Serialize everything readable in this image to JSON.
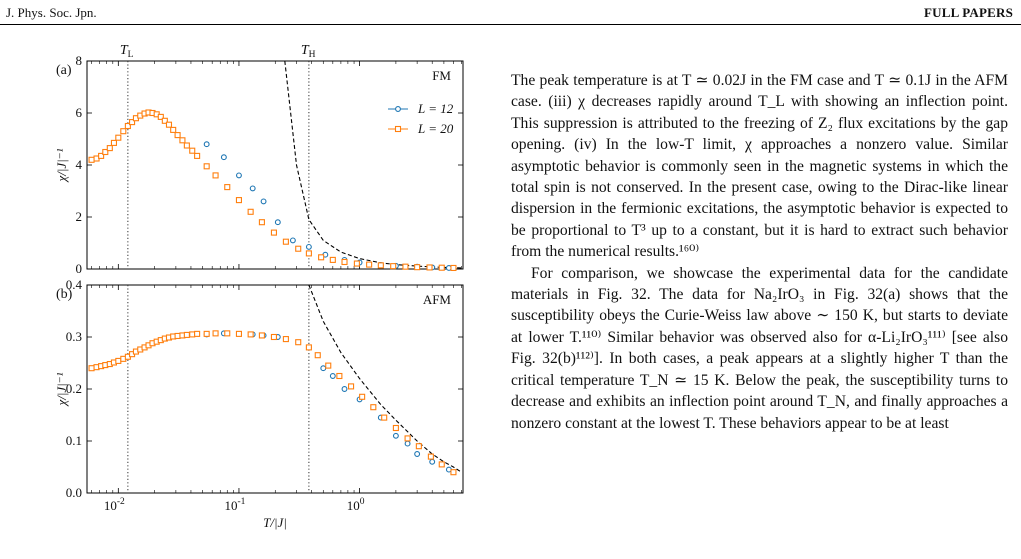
{
  "header": {
    "journal": "J. Phys. Soc. Jpn.",
    "section": "FULL PAPERS"
  },
  "figure": {
    "panel_labels": [
      "(a)",
      "(b)"
    ],
    "vline_labels": [
      "T_L",
      "T_H"
    ],
    "xlabel": "T/|J|",
    "ylabel": "χ/|J|⁻¹",
    "x_tick_labels": [
      "10^-2",
      "10^-1",
      "10^0"
    ]
  },
  "chart_data": [
    {
      "type": "scatter",
      "panel": "(a)",
      "annotation": "FM",
      "xscale": "log",
      "xlim": [
        0.0055,
        7.2
      ],
      "ylim": [
        0,
        8
      ],
      "yticks": [
        0,
        2,
        4,
        6,
        8
      ],
      "xticks": [
        0.01,
        0.1,
        1
      ],
      "vlines": [
        {
          "label": "T_L",
          "x": 0.012
        },
        {
          "label": "T_H",
          "x": 0.38
        }
      ],
      "legend_position": "right",
      "series": [
        {
          "name": "L = 12",
          "marker": "circle",
          "color": "#1f77b4",
          "x": [
            0.019,
            0.054,
            0.075,
            0.1,
            0.13,
            0.16,
            0.21,
            0.28,
            0.38,
            0.52,
            0.75,
            1.0,
            1.5,
            2.0,
            3.0,
            4.0,
            5.5
          ],
          "y": [
            6.0,
            4.8,
            4.3,
            3.6,
            3.1,
            2.6,
            1.8,
            1.1,
            0.85,
            0.55,
            0.35,
            0.25,
            0.15,
            0.12,
            0.09,
            0.06,
            0.04
          ]
        },
        {
          "name": "L = 20",
          "marker": "square",
          "color": "#ff7f0e",
          "x": [
            0.006,
            0.0066,
            0.0072,
            0.0078,
            0.0085,
            0.0092,
            0.01,
            0.011,
            0.012,
            0.013,
            0.014,
            0.0152,
            0.0165,
            0.0178,
            0.0192,
            0.0208,
            0.0225,
            0.0243,
            0.0263,
            0.0285,
            0.031,
            0.034,
            0.037,
            0.041,
            0.045,
            0.054,
            0.064,
            0.08,
            0.1,
            0.125,
            0.155,
            0.195,
            0.245,
            0.31,
            0.38,
            0.48,
            0.6,
            0.75,
            0.95,
            1.2,
            1.5,
            1.9,
            2.4,
            3.0,
            3.8,
            4.8,
            6.0
          ],
          "y": [
            4.2,
            4.25,
            4.35,
            4.5,
            4.65,
            4.85,
            5.05,
            5.3,
            5.5,
            5.65,
            5.8,
            5.9,
            5.98,
            6.02,
            6.0,
            5.95,
            5.85,
            5.7,
            5.55,
            5.35,
            5.15,
            4.95,
            4.75,
            4.55,
            4.35,
            3.95,
            3.6,
            3.15,
            2.65,
            2.2,
            1.8,
            1.4,
            1.05,
            0.78,
            0.6,
            0.45,
            0.35,
            0.27,
            0.21,
            0.17,
            0.14,
            0.11,
            0.09,
            0.07,
            0.06,
            0.05,
            0.04
          ]
        }
      ],
      "curie_weiss_dashed": {
        "x": [
          0.24,
          0.3,
          0.38,
          0.5,
          0.7,
          1.0,
          1.5,
          2.0,
          3.0,
          4.0,
          5.0,
          6.0,
          7.0
        ],
        "y": [
          8.0,
          4.0,
          1.9,
          1.1,
          0.65,
          0.4,
          0.24,
          0.17,
          0.11,
          0.08,
          0.06,
          0.05,
          0.04
        ]
      }
    },
    {
      "type": "scatter",
      "panel": "(b)",
      "annotation": "AFM",
      "xscale": "log",
      "xlim": [
        0.0055,
        7.2
      ],
      "ylim": [
        0,
        0.4
      ],
      "yticks": [
        0.0,
        0.1,
        0.2,
        0.3,
        0.4
      ],
      "xticks": [
        0.01,
        0.1,
        1
      ],
      "vlines": [
        {
          "label": "T_L",
          "x": 0.012
        },
        {
          "label": "T_H",
          "x": 0.38
        }
      ],
      "series": [
        {
          "name": "L = 12",
          "marker": "circle",
          "color": "#1f77b4",
          "x": [
            0.054,
            0.075,
            0.13,
            0.16,
            0.21,
            0.38,
            0.5,
            0.6,
            0.75,
            1.0,
            1.5,
            2.0,
            2.5,
            3.0,
            4.0,
            5.5
          ],
          "y": [
            0.305,
            0.307,
            0.305,
            0.303,
            0.3,
            0.28,
            0.24,
            0.225,
            0.2,
            0.18,
            0.145,
            0.11,
            0.095,
            0.075,
            0.06,
            0.045
          ]
        },
        {
          "name": "L = 20",
          "marker": "square",
          "color": "#ff7f0e",
          "x": [
            0.006,
            0.0066,
            0.0072,
            0.0078,
            0.0085,
            0.0092,
            0.01,
            0.011,
            0.012,
            0.013,
            0.014,
            0.0152,
            0.0165,
            0.0178,
            0.0192,
            0.0208,
            0.0225,
            0.0243,
            0.0263,
            0.0285,
            0.031,
            0.034,
            0.037,
            0.041,
            0.045,
            0.054,
            0.064,
            0.08,
            0.1,
            0.125,
            0.155,
            0.195,
            0.245,
            0.31,
            0.38,
            0.45,
            0.55,
            0.68,
            0.85,
            1.05,
            1.3,
            1.6,
            2.0,
            2.5,
            3.1,
            3.9,
            4.8,
            6.0
          ],
          "y": [
            0.24,
            0.242,
            0.244,
            0.246,
            0.248,
            0.251,
            0.254,
            0.258,
            0.262,
            0.267,
            0.272,
            0.276,
            0.28,
            0.284,
            0.288,
            0.291,
            0.294,
            0.297,
            0.299,
            0.301,
            0.302,
            0.303,
            0.304,
            0.305,
            0.306,
            0.306,
            0.307,
            0.307,
            0.306,
            0.305,
            0.303,
            0.3,
            0.296,
            0.29,
            0.28,
            0.265,
            0.245,
            0.225,
            0.205,
            0.185,
            0.165,
            0.145,
            0.125,
            0.105,
            0.09,
            0.07,
            0.055,
            0.04
          ]
        }
      ],
      "curie_weiss_dashed": {
        "x": [
          0.38,
          0.5,
          0.7,
          1.0,
          1.5,
          2.0,
          3.0,
          4.0,
          5.0,
          6.0,
          7.0
        ],
        "y": [
          0.4,
          0.33,
          0.27,
          0.22,
          0.17,
          0.14,
          0.1,
          0.075,
          0.06,
          0.05,
          0.04
        ]
      }
    }
  ],
  "text": {
    "p1": "The peak temperature is at T ≃ 0.02J in the FM case and T ≃ 0.1J in the AFM case. (iii) χ decreases rapidly around T_L with showing an inflection point. This suppression is attributed to the freezing of Z₂ flux excitations by the gap opening. (iv) In the low-T limit, χ approaches a nonzero value. Similar asymptotic behavior is commonly seen in the magnetic systems in which the total spin is not conserved. In the present case, owing to the Dirac-like linear dispersion in the fermionic excitations, the asymptotic behavior is expected to be proportional to T³ up to a constant, but it is hard to extract such behavior from the numerical results.¹⁶⁰⁾",
    "p2": "For comparison, we showcase the experimental data for the candidate materials in Fig. 32. The data for Na₂IrO₃ in Fig. 32(a) shows that the susceptibility obeys the Curie-Weiss law above ∼ 150 K, but starts to deviate at lower T.¹¹⁰⁾ Similar behavior was observed also for α-Li₂IrO₃¹¹¹⁾ [see also Fig. 32(b)¹¹²⁾]. In both cases, a peak appears at a slightly higher T than the critical temperature T_N ≃ 15 K. Below the peak, the susceptibility turns to decrease and exhibits an inflection point around T_N, and finally approaches a nonzero constant at the lowest T. These behaviors appear to be at least"
  }
}
